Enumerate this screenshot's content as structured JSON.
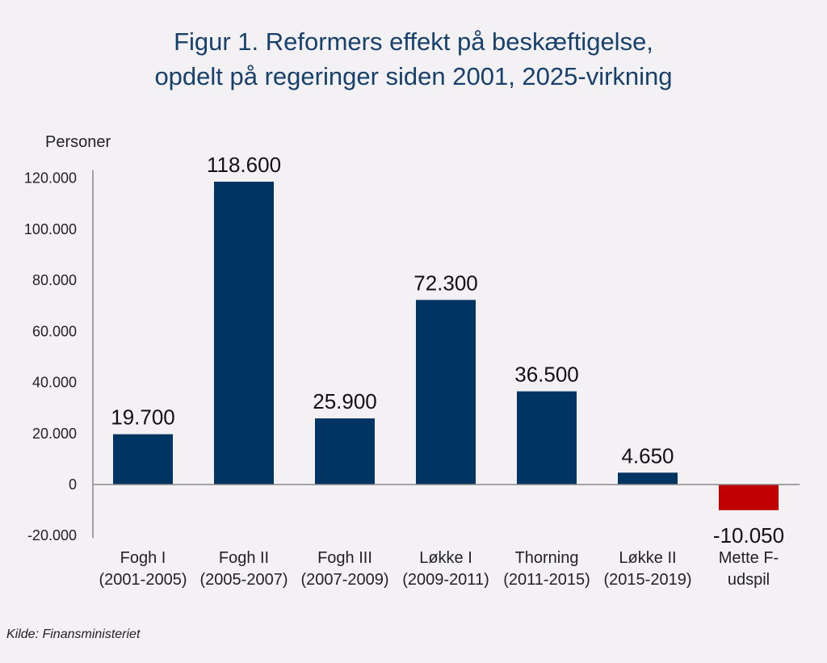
{
  "title_lines": [
    "Figur 1. Reformers effekt på beskæftigelse,",
    "opdelt på regeringer siden 2001, 2025-virkning"
  ],
  "source": "Kilde: Finansministeriet",
  "colors": {
    "positive": "#003563",
    "negative": "#c00000",
    "title": "#17406d",
    "axis": "#888888"
  },
  "chart_data": {
    "type": "bar",
    "title": "Figur 1. Reformers effekt på beskæftigelse, opdelt på regeringer siden 2001, 2025-virkning",
    "ylabel": "Personer",
    "xlabel": "",
    "ylim": [
      -20000,
      120000
    ],
    "yticks": [
      {
        "value": 120000,
        "label": "120.000"
      },
      {
        "value": 100000,
        "label": "100.000"
      },
      {
        "value": 80000,
        "label": "80.000"
      },
      {
        "value": 60000,
        "label": "60.000"
      },
      {
        "value": 40000,
        "label": "40.000"
      },
      {
        "value": 20000,
        "label": "20.000"
      },
      {
        "value": 0,
        "label": "0"
      },
      {
        "value": -20000,
        "label": "-20.000"
      }
    ],
    "categories": [
      [
        "Fogh I",
        "(2001-2005)"
      ],
      [
        "Fogh II",
        "(2005-2007)"
      ],
      [
        "Fogh III",
        "(2007-2009)"
      ],
      [
        "Løkke I",
        "(2009-2011)"
      ],
      [
        "Thorning",
        "(2011-2015)"
      ],
      [
        "Løkke II",
        "(2015-2019)"
      ],
      [
        "Mette F-",
        "udspil"
      ]
    ],
    "values": [
      19700,
      118600,
      25900,
      72300,
      36500,
      4650,
      -10050
    ],
    "value_labels": [
      "19.700",
      "118.600",
      "25.900",
      "72.300",
      "36.500",
      "4.650",
      "-10.050"
    ]
  }
}
